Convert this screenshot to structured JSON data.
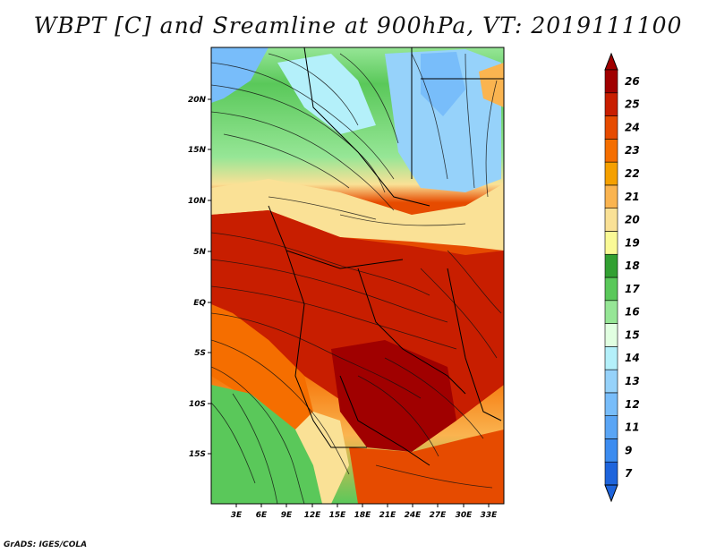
{
  "title": "WBPT [C] and Sreamline at 900hPa, VT: 2019111100",
  "credit": "GrADS: IGES/COLA",
  "map": {
    "lat_ticks": [
      "20N",
      "15N",
      "10N",
      "5N",
      "EQ",
      "5S",
      "10S",
      "15S"
    ],
    "lon_ticks": [
      "3E",
      "6E",
      "9E",
      "12E",
      "15E",
      "18E",
      "21E",
      "24E",
      "27E",
      "30E",
      "33E"
    ]
  },
  "colorbar": {
    "labels": [
      "7",
      "9",
      "11",
      "12",
      "13",
      "14",
      "15",
      "16",
      "17",
      "18",
      "19",
      "20",
      "21",
      "22",
      "23",
      "24",
      "25",
      "26"
    ],
    "colors": [
      "#1e64dc",
      "#3c8cf0",
      "#5aa5f5",
      "#78bdfa",
      "#96d2fa",
      "#b4f0fa",
      "#e1ffe1",
      "#96e696",
      "#5ac85a",
      "#32a032",
      "#fafa96",
      "#fae196",
      "#fab450",
      "#f5a000",
      "#f56e00",
      "#e64b00",
      "#c81e00",
      "#a00000"
    ]
  }
}
